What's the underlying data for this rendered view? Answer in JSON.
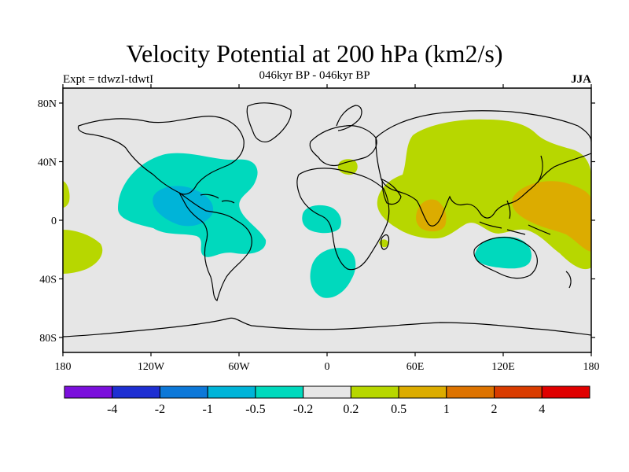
{
  "title": "Velocity Potential at 200 hPa (km2/s)",
  "subtitle": "046kyr BP - 046kyr BP",
  "experiment_label": "Expt = tdwzI-tdwtI",
  "season_label": "JJA",
  "map": {
    "lat_ticks": [
      "80N",
      "40N",
      "0",
      "40S",
      "80S"
    ],
    "lon_ticks": [
      "180",
      "120W",
      "60W",
      "0",
      "60E",
      "120E",
      "180"
    ],
    "background_color": "#e6e6e6",
    "coastline_color": "#000000"
  },
  "colorbar": {
    "colors": [
      "#7b0fdc",
      "#1e2fd2",
      "#0d78d8",
      "#00b4d8",
      "#00d9bd",
      "#e6e6e6",
      "#b7d700",
      "#dcac00",
      "#dd7300",
      "#d93c00",
      "#e00000"
    ],
    "labels": [
      "-4",
      "-2",
      "-1",
      "-0.5",
      "-0.2",
      "0.2",
      "0.5",
      "1",
      "2",
      "4"
    ]
  }
}
